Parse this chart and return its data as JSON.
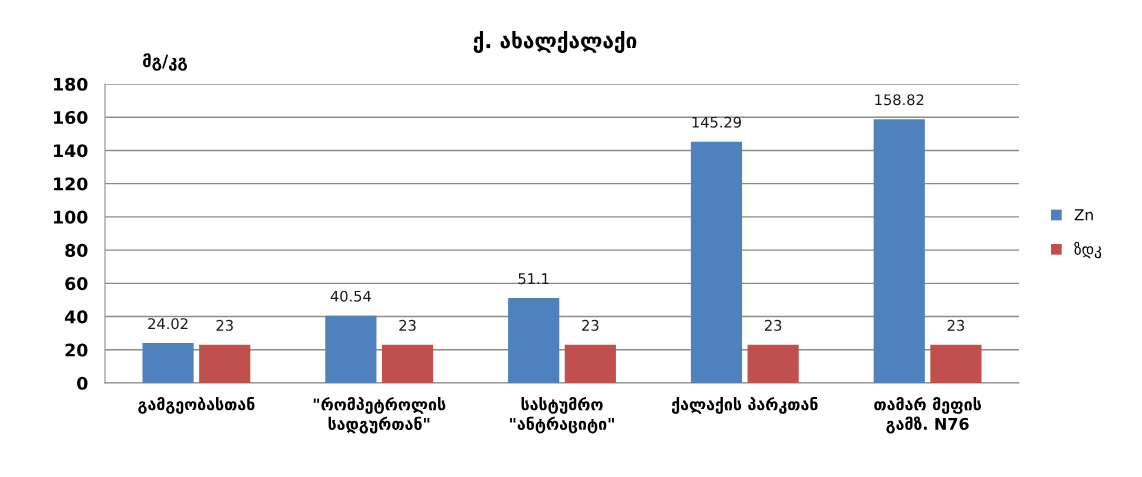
{
  "chart_data": {
    "type": "bar",
    "title": "ქ. ახალქალაქი",
    "ylabel": "მგ/კგ",
    "categories": [
      "გამგეობასთან",
      "\"რომპეტროლის\nსადგურთან\"",
      "სასტუმრო\n\"ანტრაციტი\"",
      "ქალაქის პარკთან",
      "თამარ მეფის\nგამზ. N76"
    ],
    "series": [
      {
        "name": "Zn",
        "color": "#4f81bd",
        "values": [
          24.02,
          40.54,
          51.1,
          145.29,
          158.82
        ]
      },
      {
        "name": "ზდკ",
        "color": "#c0504d",
        "values": [
          23,
          23,
          23,
          23,
          23
        ]
      }
    ],
    "ylim": [
      0,
      180
    ],
    "yticks": [
      0,
      20,
      40,
      60,
      80,
      100,
      120,
      140,
      160,
      180
    ],
    "grid": "y",
    "legend": "right",
    "data_labels": true
  }
}
